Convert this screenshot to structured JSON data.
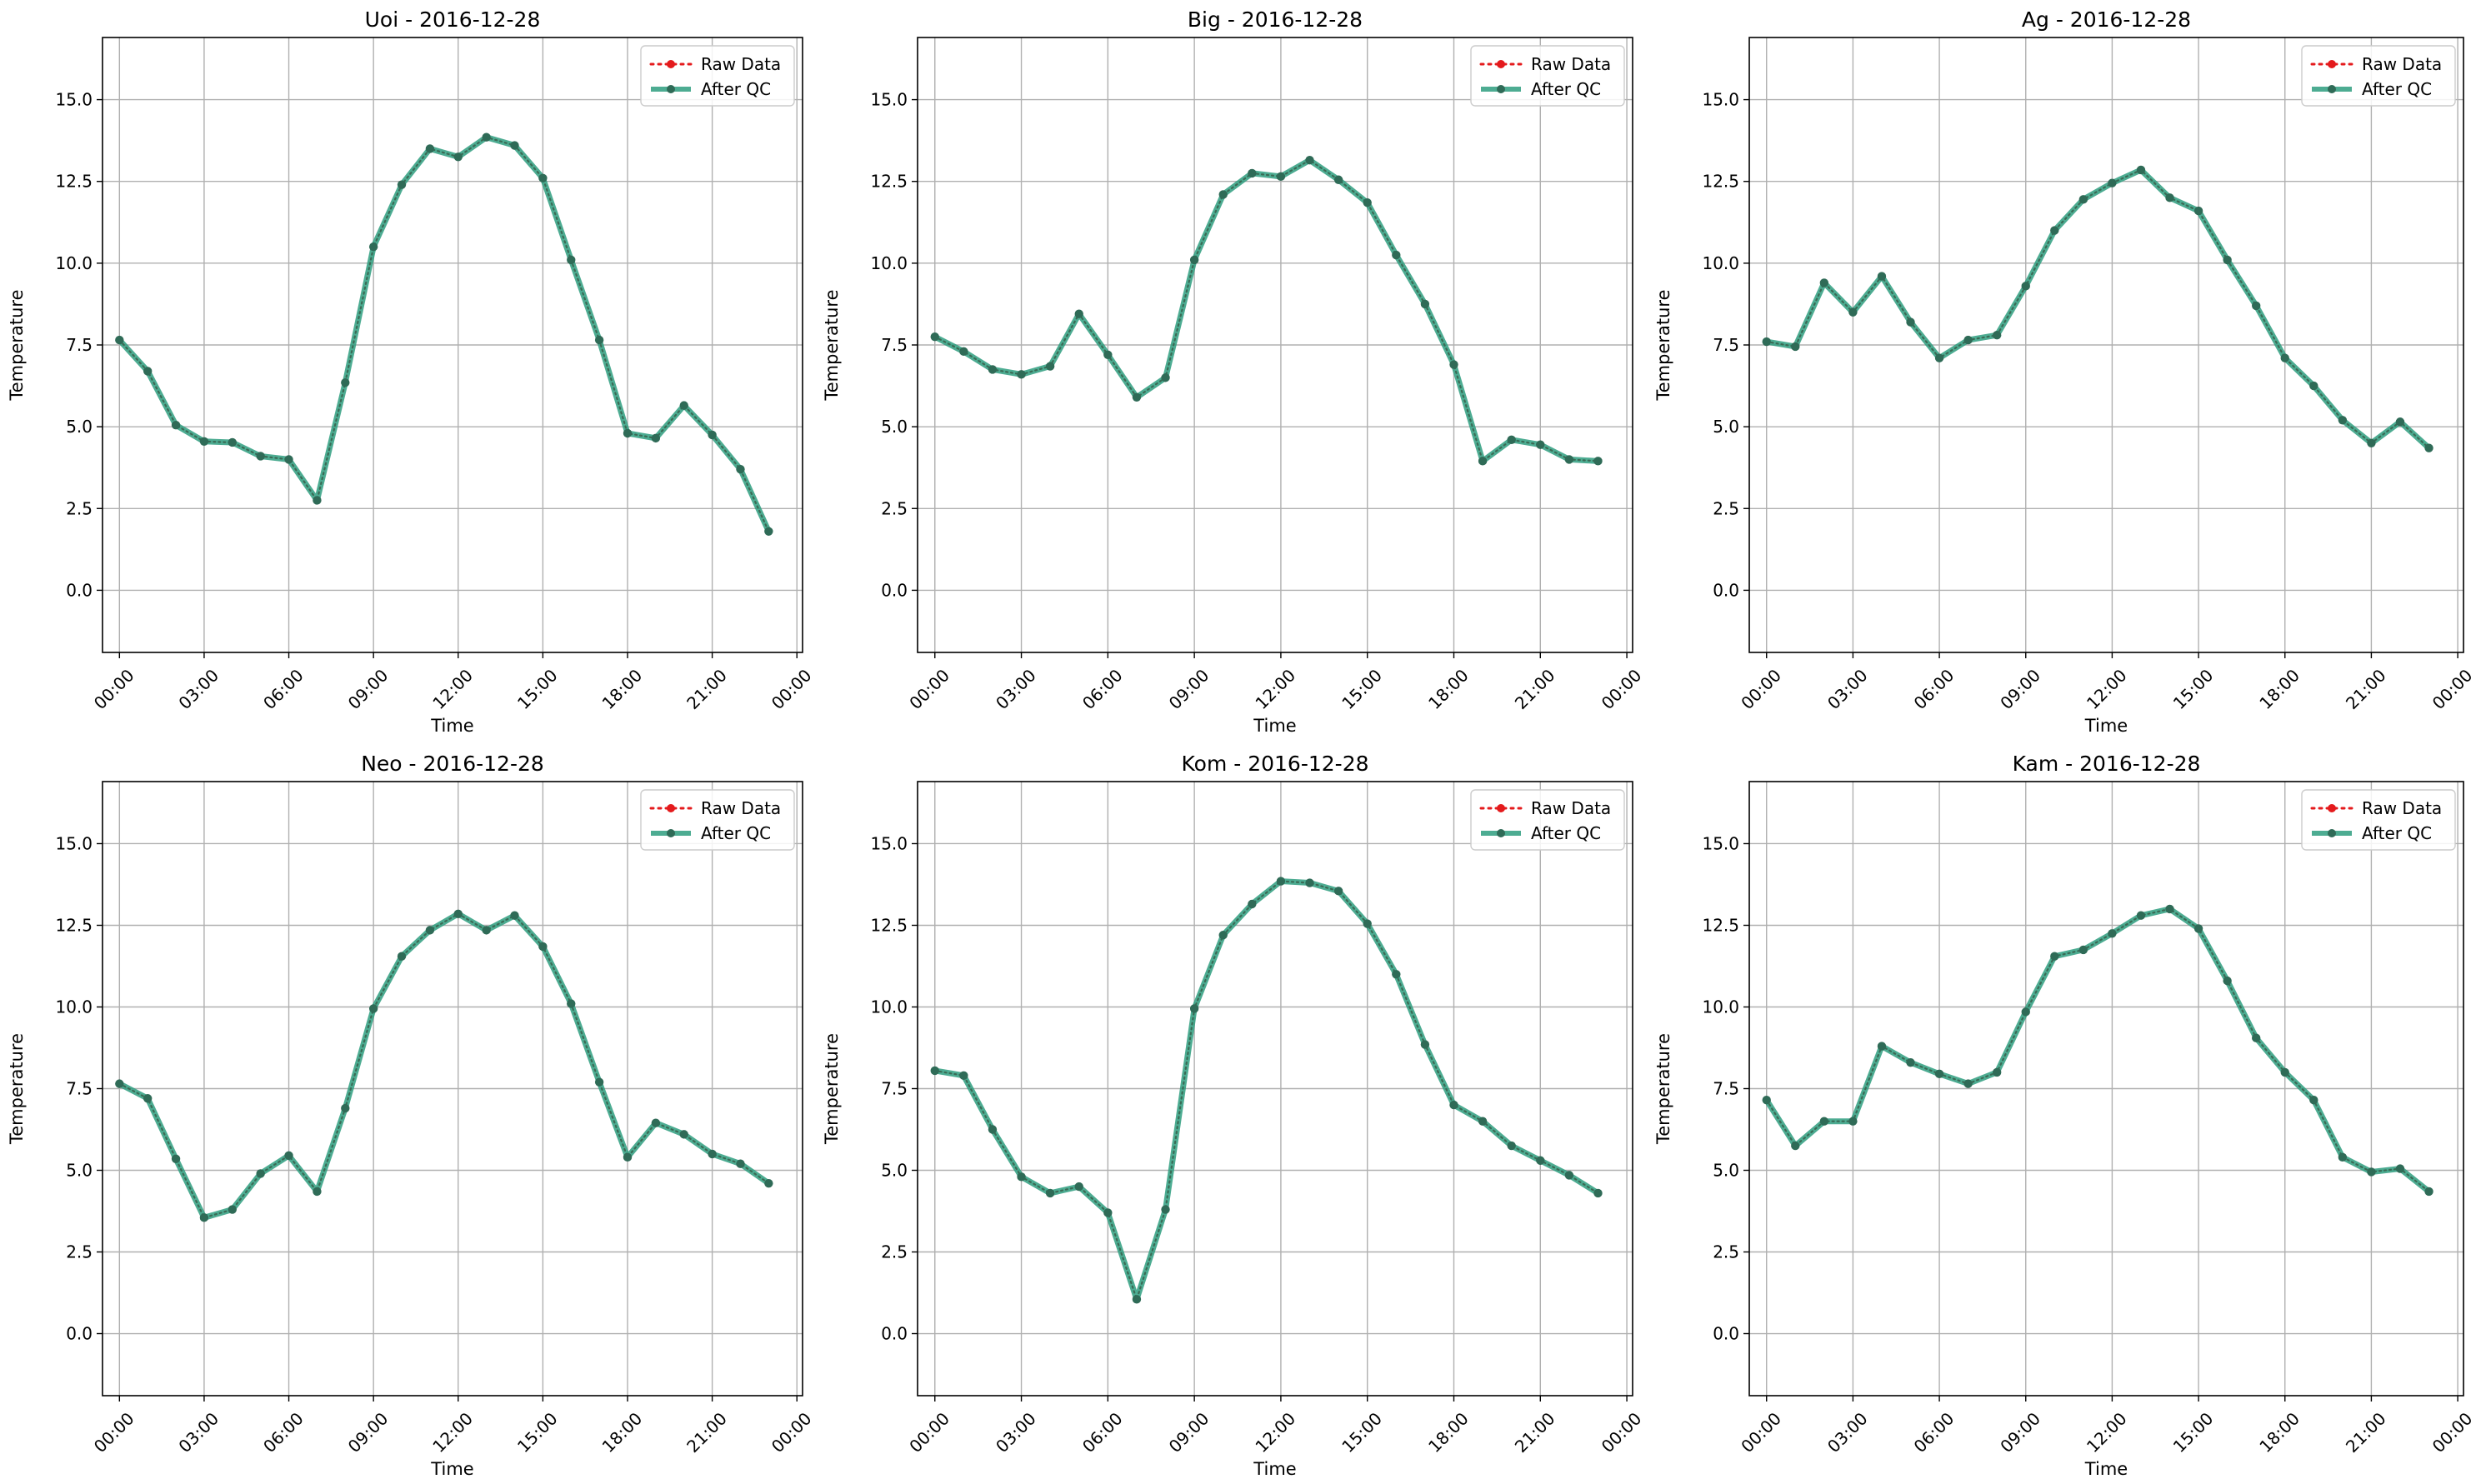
{
  "figure": {
    "colors": {
      "raw": "#e41a1c",
      "qc": "#2e9e7f",
      "qc_marker": "#2f6b57",
      "grid": "#b0b0b0",
      "axis": "#000000"
    }
  },
  "chart_data": [
    {
      "type": "line",
      "title": "Uoi - 2016-12-28",
      "xlabel": "Time",
      "ylabel": "Temperature",
      "x_hours": [
        0,
        1,
        2,
        3,
        4,
        5,
        6,
        7,
        8,
        9,
        10,
        11,
        12,
        13,
        14,
        15,
        16,
        17,
        18,
        19,
        20,
        21,
        22,
        23
      ],
      "xticks": [
        "00:00",
        "03:00",
        "06:00",
        "09:00",
        "12:00",
        "15:00",
        "18:00",
        "21:00",
        "00:00"
      ],
      "yticks": [
        "0.0",
        "2.5",
        "5.0",
        "7.5",
        "10.0",
        "12.5",
        "15.0"
      ],
      "ylim": [
        -1.9,
        16.9
      ],
      "xlim": [
        -0.6,
        24.2
      ],
      "grid": true,
      "legend": "top-right",
      "series": [
        {
          "name": "Raw Data",
          "style": "dotted",
          "values": [
            7.65,
            6.7,
            5.05,
            4.55,
            4.52,
            4.1,
            4.0,
            2.75,
            6.35,
            10.5,
            12.4,
            13.5,
            13.25,
            13.85,
            13.6,
            12.6,
            10.1,
            7.65,
            4.8,
            4.65,
            5.65,
            4.75,
            3.7,
            1.8
          ]
        },
        {
          "name": "After QC",
          "style": "solid",
          "values": [
            7.65,
            6.7,
            5.05,
            4.55,
            4.52,
            4.1,
            4.0,
            2.75,
            6.35,
            10.5,
            12.4,
            13.5,
            13.25,
            13.85,
            13.6,
            12.6,
            10.1,
            7.65,
            4.8,
            4.65,
            5.65,
            4.75,
            3.7,
            1.8
          ]
        }
      ]
    },
    {
      "type": "line",
      "title": "Big - 2016-12-28",
      "xlabel": "Time",
      "ylabel": "Temperature",
      "x_hours": [
        0,
        1,
        2,
        3,
        4,
        5,
        6,
        7,
        8,
        9,
        10,
        11,
        12,
        13,
        14,
        15,
        16,
        17,
        18,
        19,
        20,
        21,
        22,
        23
      ],
      "xticks": [
        "00:00",
        "03:00",
        "06:00",
        "09:00",
        "12:00",
        "15:00",
        "18:00",
        "21:00",
        "00:00"
      ],
      "yticks": [
        "0.0",
        "2.5",
        "5.0",
        "7.5",
        "10.0",
        "12.5",
        "15.0"
      ],
      "ylim": [
        -1.9,
        16.9
      ],
      "xlim": [
        -0.6,
        24.2
      ],
      "grid": true,
      "legend": "top-right",
      "series": [
        {
          "name": "Raw Data",
          "style": "dotted",
          "values": [
            7.75,
            7.3,
            6.75,
            6.6,
            6.85,
            8.45,
            7.2,
            5.9,
            6.5,
            10.1,
            12.1,
            12.75,
            12.65,
            13.15,
            12.55,
            11.85,
            10.25,
            8.75,
            6.9,
            3.95,
            4.6,
            4.45,
            4.0,
            3.95
          ]
        },
        {
          "name": "After QC",
          "style": "solid",
          "values": [
            7.75,
            7.3,
            6.75,
            6.6,
            6.85,
            8.45,
            7.2,
            5.9,
            6.5,
            10.1,
            12.1,
            12.75,
            12.65,
            13.15,
            12.55,
            11.85,
            10.25,
            8.75,
            6.9,
            3.95,
            4.6,
            4.45,
            4.0,
            3.95
          ]
        }
      ]
    },
    {
      "type": "line",
      "title": "Ag - 2016-12-28",
      "xlabel": "Time",
      "ylabel": "Temperature",
      "x_hours": [
        0,
        1,
        2,
        3,
        4,
        5,
        6,
        7,
        8,
        9,
        10,
        11,
        12,
        13,
        14,
        15,
        16,
        17,
        18,
        19,
        20,
        21,
        22,
        23
      ],
      "xticks": [
        "00:00",
        "03:00",
        "06:00",
        "09:00",
        "12:00",
        "15:00",
        "18:00",
        "21:00",
        "00:00"
      ],
      "yticks": [
        "0.0",
        "2.5",
        "5.0",
        "7.5",
        "10.0",
        "12.5",
        "15.0"
      ],
      "ylim": [
        -1.9,
        16.9
      ],
      "xlim": [
        -0.6,
        24.2
      ],
      "grid": true,
      "legend": "top-right",
      "series": [
        {
          "name": "Raw Data",
          "style": "dotted",
          "values": [
            7.6,
            7.45,
            9.4,
            8.5,
            9.6,
            8.2,
            7.1,
            7.65,
            7.8,
            9.3,
            11.0,
            11.95,
            12.45,
            12.85,
            12.0,
            11.6,
            10.1,
            8.7,
            7.1,
            6.25,
            5.2,
            4.5,
            5.15,
            4.35
          ]
        },
        {
          "name": "After QC",
          "style": "solid",
          "values": [
            7.6,
            7.45,
            9.4,
            8.5,
            9.6,
            8.2,
            7.1,
            7.65,
            7.8,
            9.3,
            11.0,
            11.95,
            12.45,
            12.85,
            12.0,
            11.6,
            10.1,
            8.7,
            7.1,
            6.25,
            5.2,
            4.5,
            5.15,
            4.35
          ]
        }
      ]
    },
    {
      "type": "line",
      "title": "Neo - 2016-12-28",
      "xlabel": "Time",
      "ylabel": "Temperature",
      "x_hours": [
        0,
        1,
        2,
        3,
        4,
        5,
        6,
        7,
        8,
        9,
        10,
        11,
        12,
        13,
        14,
        15,
        16,
        17,
        18,
        19,
        20,
        21,
        22,
        23
      ],
      "xticks": [
        "00:00",
        "03:00",
        "06:00",
        "09:00",
        "12:00",
        "15:00",
        "18:00",
        "21:00",
        "00:00"
      ],
      "yticks": [
        "0.0",
        "2.5",
        "5.0",
        "7.5",
        "10.0",
        "12.5",
        "15.0"
      ],
      "ylim": [
        -1.9,
        16.9
      ],
      "xlim": [
        -0.6,
        24.2
      ],
      "grid": true,
      "legend": "top-right",
      "series": [
        {
          "name": "Raw Data",
          "style": "dotted",
          "values": [
            7.65,
            7.2,
            5.35,
            3.55,
            3.8,
            4.9,
            5.45,
            4.35,
            6.9,
            9.95,
            11.55,
            12.35,
            12.85,
            12.35,
            12.8,
            11.85,
            10.1,
            7.7,
            5.4,
            6.45,
            6.1,
            5.5,
            5.2,
            4.6
          ]
        },
        {
          "name": "After QC",
          "style": "solid",
          "values": [
            7.65,
            7.2,
            5.35,
            3.55,
            3.8,
            4.9,
            5.45,
            4.35,
            6.9,
            9.95,
            11.55,
            12.35,
            12.85,
            12.35,
            12.8,
            11.85,
            10.1,
            7.7,
            5.4,
            6.45,
            6.1,
            5.5,
            5.2,
            4.6
          ]
        }
      ]
    },
    {
      "type": "line",
      "title": "Kom - 2016-12-28",
      "xlabel": "Time",
      "ylabel": "Temperature",
      "x_hours": [
        0,
        1,
        2,
        3,
        4,
        5,
        6,
        7,
        8,
        9,
        10,
        11,
        12,
        13,
        14,
        15,
        16,
        17,
        18,
        19,
        20,
        21,
        22,
        23
      ],
      "xticks": [
        "00:00",
        "03:00",
        "06:00",
        "09:00",
        "12:00",
        "15:00",
        "18:00",
        "21:00",
        "00:00"
      ],
      "yticks": [
        "0.0",
        "2.5",
        "5.0",
        "7.5",
        "10.0",
        "12.5",
        "15.0"
      ],
      "ylim": [
        -1.9,
        16.9
      ],
      "xlim": [
        -0.6,
        24.2
      ],
      "grid": true,
      "legend": "top-right",
      "series": [
        {
          "name": "Raw Data",
          "style": "dotted",
          "values": [
            8.05,
            7.9,
            6.25,
            4.8,
            4.3,
            4.5,
            3.7,
            1.05,
            3.8,
            9.95,
            12.2,
            13.15,
            13.85,
            13.8,
            13.55,
            12.55,
            11.0,
            8.85,
            7.0,
            6.5,
            5.75,
            5.3,
            4.85,
            4.3
          ]
        },
        {
          "name": "After QC",
          "style": "solid",
          "values": [
            8.05,
            7.9,
            6.25,
            4.8,
            4.3,
            4.5,
            3.7,
            1.05,
            3.8,
            9.95,
            12.2,
            13.15,
            13.85,
            13.8,
            13.55,
            12.55,
            11.0,
            8.85,
            7.0,
            6.5,
            5.75,
            5.3,
            4.85,
            4.3
          ]
        }
      ]
    },
    {
      "type": "line",
      "title": "Kam - 2016-12-28",
      "xlabel": "Time",
      "ylabel": "Temperature",
      "x_hours": [
        0,
        1,
        2,
        3,
        4,
        5,
        6,
        7,
        8,
        9,
        10,
        11,
        12,
        13,
        14,
        15,
        16,
        17,
        18,
        19,
        20,
        21,
        22,
        23
      ],
      "xticks": [
        "00:00",
        "03:00",
        "06:00",
        "09:00",
        "12:00",
        "15:00",
        "18:00",
        "21:00",
        "00:00"
      ],
      "yticks": [
        "0.0",
        "2.5",
        "5.0",
        "7.5",
        "10.0",
        "12.5",
        "15.0"
      ],
      "ylim": [
        -1.9,
        16.9
      ],
      "xlim": [
        -0.6,
        24.2
      ],
      "grid": true,
      "legend": "top-right",
      "series": [
        {
          "name": "Raw Data",
          "style": "dotted",
          "values": [
            7.15,
            5.75,
            6.5,
            6.5,
            8.8,
            8.3,
            7.95,
            7.65,
            8.0,
            9.85,
            11.55,
            11.75,
            12.25,
            12.8,
            13.0,
            12.4,
            10.8,
            9.05,
            8.0,
            7.15,
            5.4,
            4.95,
            5.05,
            4.35
          ]
        },
        {
          "name": "After QC",
          "style": "solid",
          "values": [
            7.15,
            5.75,
            6.5,
            6.5,
            8.8,
            8.3,
            7.95,
            7.65,
            8.0,
            9.85,
            11.55,
            11.75,
            12.25,
            12.8,
            13.0,
            12.4,
            10.8,
            9.05,
            8.0,
            7.15,
            5.4,
            4.95,
            5.05,
            4.35
          ]
        }
      ]
    }
  ]
}
